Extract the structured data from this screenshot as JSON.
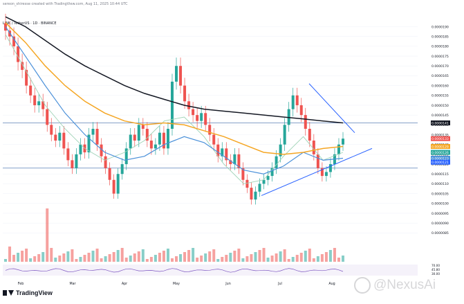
{
  "header": {
    "caption": "sereon_shiresse created with TradingView.com, Aug 11, 2025 10:44 UTC",
    "symbol_line": "LINK / TetherUS · 1D · BINANCE"
  },
  "branding": {
    "tradingview_logo": "TradingView",
    "watermark_text": "@NexusAi",
    "watermark_icon": "chat-bubble-icon"
  },
  "colors": {
    "bull": "#26a69a",
    "bear": "#ef5350",
    "ema200": "#131722",
    "ema100": "#f5a623",
    "ema50": "#4a90d9",
    "ema20": "#9fd3b6",
    "trendline": "#2962ff",
    "level": "#5b7fb6",
    "rsi": "#7e57c2"
  },
  "chart_data": {
    "type": "candlestick",
    "title": "",
    "x_ticks": [
      "Feb",
      "Mar",
      "Apr",
      "May",
      "Jun",
      "Jul",
      "Aug"
    ],
    "y_ticks": [
      "0.0000190",
      "0.0000185",
      "0.0000180",
      "0.0000175",
      "0.0000170",
      "0.0000165",
      "0.0000160",
      "0.0000155",
      "0.0000150",
      "0.0000145",
      "0.0000140",
      "0.0000135",
      "0.0000130",
      "0.0000125",
      "0.0000120",
      "0.0000115",
      "0.0000110",
      "0.0000105",
      "0.0000100",
      "0.0000095",
      "0.0000090",
      "0.0000085"
    ],
    "ylim": [
      8.3e-06,
      1.93e-05
    ],
    "price_labels": [
      {
        "text": "0.0000141",
        "color": "#131722"
      },
      {
        "text": "0.0000133",
        "color": "#ef5350"
      },
      {
        "text": "0.0000129",
        "color": "#f5a623"
      },
      {
        "text": "0.0000126",
        "color": "#26a69a"
      },
      {
        "text": "0.0000123",
        "color": "#4a90d9"
      },
      {
        "text": "0.0000121",
        "color": "#2962ff"
      }
    ],
    "horizontal_levels": [
      1.41e-05,
      1.18e-05
    ],
    "close_series": [
      1.88e-05,
      1.85e-05,
      1.8e-05,
      1.72e-05,
      1.68e-05,
      1.6e-05,
      1.55e-05,
      1.5e-05,
      1.52e-05,
      1.48e-05,
      1.4e-05,
      1.35e-05,
      1.32e-05,
      1.36e-05,
      1.28e-05,
      1.22e-05,
      1.18e-05,
      1.25e-05,
      1.3e-05,
      1.26e-05,
      1.35e-05,
      1.38e-05,
      1.3e-05,
      1.24e-05,
      1.18e-05,
      1.12e-05,
      1.05e-05,
      1.15e-05,
      1.2e-05,
      1.28e-05,
      1.35e-05,
      1.32e-05,
      1.4e-05,
      1.38e-05,
      1.32e-05,
      1.28e-05,
      1.3e-05,
      1.36e-05,
      1.28e-05,
      1.38e-05,
      1.62e-05,
      1.7e-05,
      1.6e-05,
      1.52e-05,
      1.48e-05,
      1.45e-05,
      1.42e-05,
      1.46e-05,
      1.4e-05,
      1.35e-05,
      1.3e-05,
      1.24e-05,
      1.28e-05,
      1.22e-05,
      1.2e-05,
      1.25e-05,
      1.18e-05,
      1.12e-05,
      1.08e-05,
      1.02e-05,
      1.06e-05,
      1.1e-05,
      1.12e-05,
      1.14e-05,
      1.18e-05,
      1.24e-05,
      1.3e-05,
      1.4e-05,
      1.48e-05,
      1.55e-05,
      1.5e-05,
      1.45e-05,
      1.38e-05,
      1.32e-05,
      1.25e-05,
      1.18e-05,
      1.14e-05,
      1.16e-05,
      1.2e-05,
      1.25e-05,
      1.3e-05,
      1.33e-05
    ],
    "ema200": [
      1.95e-05,
      1.9e-05,
      1.83e-05,
      1.76e-05,
      1.7e-05,
      1.65e-05,
      1.6e-05,
      1.56e-05,
      1.53e-05,
      1.5e-05,
      1.48e-05,
      1.47e-05,
      1.46e-05,
      1.45e-05,
      1.44e-05,
      1.43e-05,
      1.42e-05,
      1.41e-05
    ],
    "ema100": [
      1.92e-05,
      1.82e-05,
      1.7e-05,
      1.6e-05,
      1.52e-05,
      1.46e-05,
      1.42e-05,
      1.4e-05,
      1.41e-05,
      1.4e-05,
      1.37e-05,
      1.34e-05,
      1.3e-05,
      1.26e-05,
      1.25e-05,
      1.26e-05,
      1.28e-05,
      1.29e-05
    ],
    "ema50": [
      1.9e-05,
      1.75e-05,
      1.6e-05,
      1.46e-05,
      1.35e-05,
      1.26e-05,
      1.22e-05,
      1.24e-05,
      1.3e-05,
      1.34e-05,
      1.31e-05,
      1.24e-05,
      1.17e-05,
      1.15e-05,
      1.19e-05,
      1.26e-05,
      1.22e-05,
      1.23e-05
    ],
    "ema20": [
      1.86e-05,
      1.68e-05,
      1.5e-05,
      1.38e-05,
      1.28e-05,
      1.22e-05,
      1.26e-05,
      1.32e-05,
      1.42e-05,
      1.44e-05,
      1.34e-05,
      1.2e-05,
      1.1e-05,
      1.12e-05,
      1.24e-05,
      1.34e-05,
      1.22e-05,
      1.26e-05
    ],
    "rsi_ticks": [
      "70.00",
      "45.80",
      "30.00"
    ],
    "volume_label": "NaN"
  }
}
